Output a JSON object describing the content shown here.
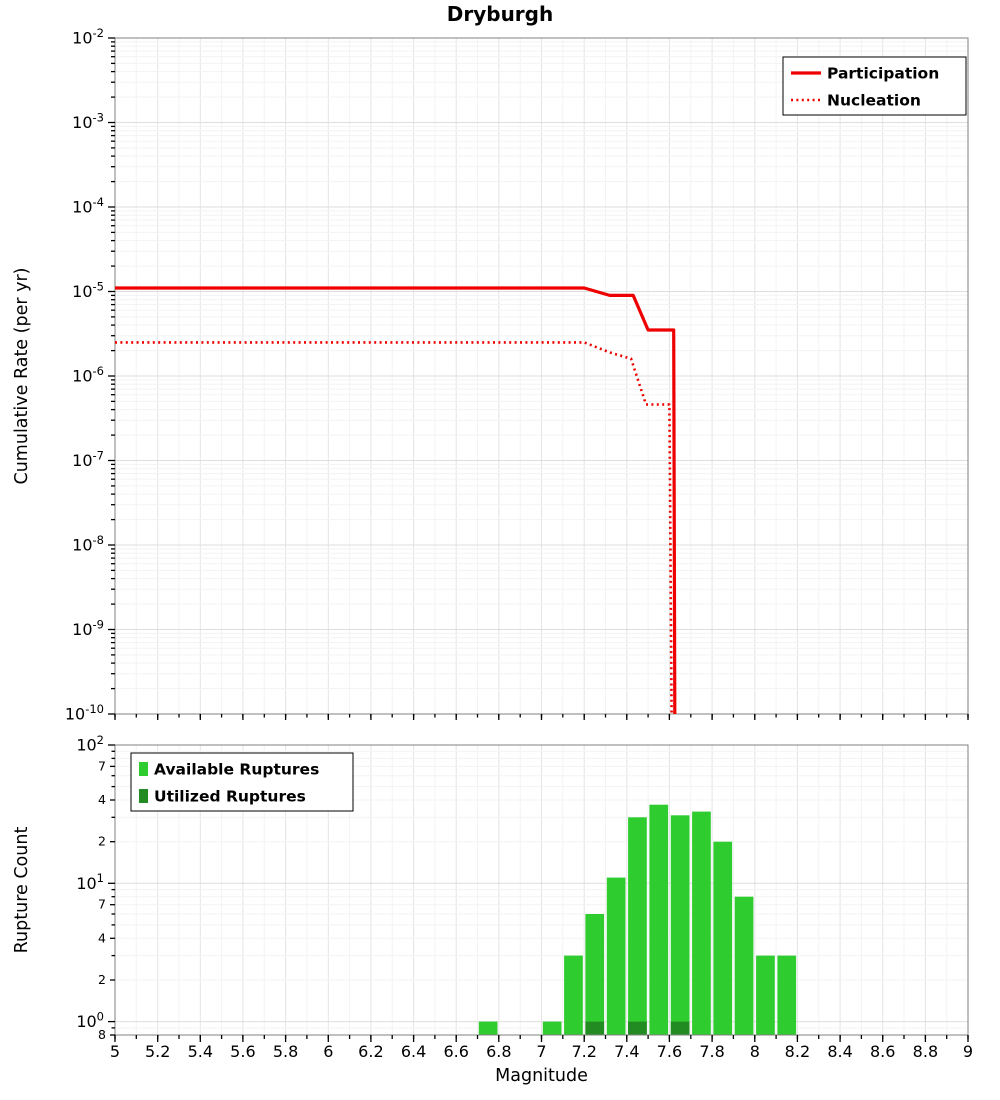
{
  "background": "#ffffff",
  "chart_data": [
    {
      "type": "line",
      "title": "Dryburgh",
      "xlabel": "Magnitude",
      "ylabel": "Cumulative Rate (per yr)",
      "xscale": "linear",
      "yscale": "log",
      "xlim": [
        5,
        9
      ],
      "ylim": [
        1e-10,
        0.01
      ],
      "x_tick_step": 0.2,
      "x_tick_labels": [],
      "y_tick_exponents": [
        -2,
        -3,
        -4,
        -5,
        -6,
        -7,
        -8,
        -9,
        -10
      ],
      "grid": true,
      "legend_position": "top-right",
      "series": [
        {
          "name": "Participation",
          "style": "solid",
          "color": "#ee0000",
          "points": [
            [
              5.0,
              1.1e-05
            ],
            [
              7.2,
              1.1e-05
            ],
            [
              7.32,
              9e-06
            ],
            [
              7.43,
              9e-06
            ],
            [
              7.5,
              3.5e-06
            ],
            [
              7.62,
              3.5e-06
            ],
            [
              7.625,
              1e-10
            ]
          ]
        },
        {
          "name": "Nucleation",
          "style": "dotted",
          "color": "#ee0000",
          "points": [
            [
              5.0,
              2.5e-06
            ],
            [
              7.2,
              2.5e-06
            ],
            [
              7.32,
              1.9e-06
            ],
            [
              7.42,
              1.6e-06
            ],
            [
              7.49,
              4.6e-07
            ],
            [
              7.6,
              4.6e-07
            ],
            [
              7.61,
              1e-10
            ]
          ]
        }
      ]
    },
    {
      "type": "bar",
      "title": "",
      "xlabel": "Magnitude",
      "ylabel": "Rupture Count",
      "xscale": "linear",
      "yscale": "log",
      "xlim": [
        5,
        9
      ],
      "ylim": [
        0.8,
        100
      ],
      "x_tick_step": 0.2,
      "x_tick_labels": [
        "5",
        "5.2",
        "5.4",
        "5.6",
        "5.8",
        "6",
        "6.2",
        "6.4",
        "6.6",
        "6.8",
        "7",
        "7.2",
        "7.4",
        "7.6",
        "7.8",
        "8",
        "8.2",
        "8.4",
        "8.6",
        "8.8",
        "9"
      ],
      "y_major_tick_exponents": [
        2,
        1,
        0
      ],
      "y_minor_tick_labels": [
        7,
        4,
        2
      ],
      "y_min_edge_label": "8",
      "bin_width": 0.1,
      "grid": true,
      "legend_position": "top-left",
      "series": [
        {
          "name": "Available Ruptures",
          "color": "#2fcc2f",
          "x": [
            6.75,
            7.05,
            7.15,
            7.25,
            7.35,
            7.45,
            7.55,
            7.65,
            7.75,
            7.85,
            7.95,
            8.05,
            8.15
          ],
          "values": [
            1,
            1,
            3,
            6,
            11,
            30,
            37,
            31,
            33,
            20,
            8,
            3,
            3
          ]
        },
        {
          "name": "Utilized Ruptures",
          "color": "#228B22",
          "x": [
            7.25,
            7.45,
            7.65
          ],
          "values": [
            1,
            1,
            1
          ]
        }
      ]
    }
  ]
}
